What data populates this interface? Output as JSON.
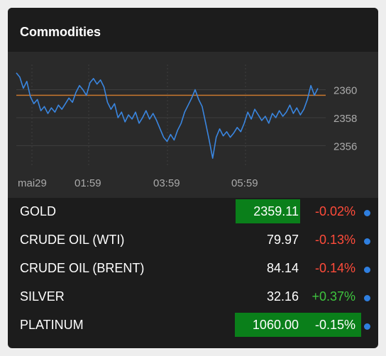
{
  "widget": {
    "title": "Commodities"
  },
  "chart_data": {
    "type": "line",
    "x_ticks": [
      "mai29",
      "01:59",
      "03:59",
      "05:59"
    ],
    "y_ticks": [
      2356,
      2358,
      2360
    ],
    "ylim": [
      2354.6,
      2361.8
    ],
    "reference_line": 2359.6,
    "colors": {
      "line": "#3a86e0",
      "reference": "#c8772e",
      "grid": "#3e3e3e",
      "text": "#aaaaaa"
    },
    "values": [
      2361.2,
      2360.9,
      2360.1,
      2360.6,
      2359.5,
      2359.0,
      2359.3,
      2358.5,
      2358.8,
      2358.3,
      2358.7,
      2358.4,
      2358.9,
      2358.6,
      2359.0,
      2359.4,
      2359.1,
      2359.8,
      2360.3,
      2360.0,
      2359.6,
      2360.5,
      2360.8,
      2360.4,
      2360.7,
      2360.2,
      2359.1,
      2358.6,
      2359.0,
      2358.0,
      2358.4,
      2357.7,
      2358.2,
      2357.9,
      2358.4,
      2357.6,
      2358.0,
      2358.5,
      2357.9,
      2358.3,
      2357.8,
      2357.2,
      2356.6,
      2356.3,
      2356.8,
      2356.4,
      2357.1,
      2357.6,
      2358.4,
      2358.9,
      2359.4,
      2360.0,
      2359.3,
      2358.8,
      2357.6,
      2356.4,
      2355.1,
      2356.6,
      2357.2,
      2356.7,
      2357.0,
      2356.6,
      2356.9,
      2357.3,
      2357.0,
      2357.6,
      2358.4,
      2357.9,
      2358.6,
      2358.2,
      2357.8,
      2358.1,
      2357.6,
      2358.3,
      2358.0,
      2358.5,
      2358.1,
      2358.4,
      2358.9,
      2358.3,
      2358.7,
      2358.2,
      2358.6,
      2359.3,
      2360.3,
      2359.6,
      2360.1
    ]
  },
  "commodities": [
    {
      "name": "GOLD",
      "price": "2359.11",
      "change": "-0.02%",
      "direction": "neg",
      "highlight": "price"
    },
    {
      "name": "CRUDE OIL (WTI)",
      "price": "79.97",
      "change": "-0.13%",
      "direction": "neg",
      "highlight": "none"
    },
    {
      "name": "CRUDE OIL (BRENT)",
      "price": "84.14",
      "change": "-0.14%",
      "direction": "neg",
      "highlight": "none"
    },
    {
      "name": "SILVER",
      "price": "32.16",
      "change": "+0.37%",
      "direction": "pos",
      "highlight": "none"
    },
    {
      "name": "PLATINUM",
      "price": "1060.00",
      "change": "-0.15%",
      "direction": "neg",
      "highlight": "price-change"
    }
  ]
}
